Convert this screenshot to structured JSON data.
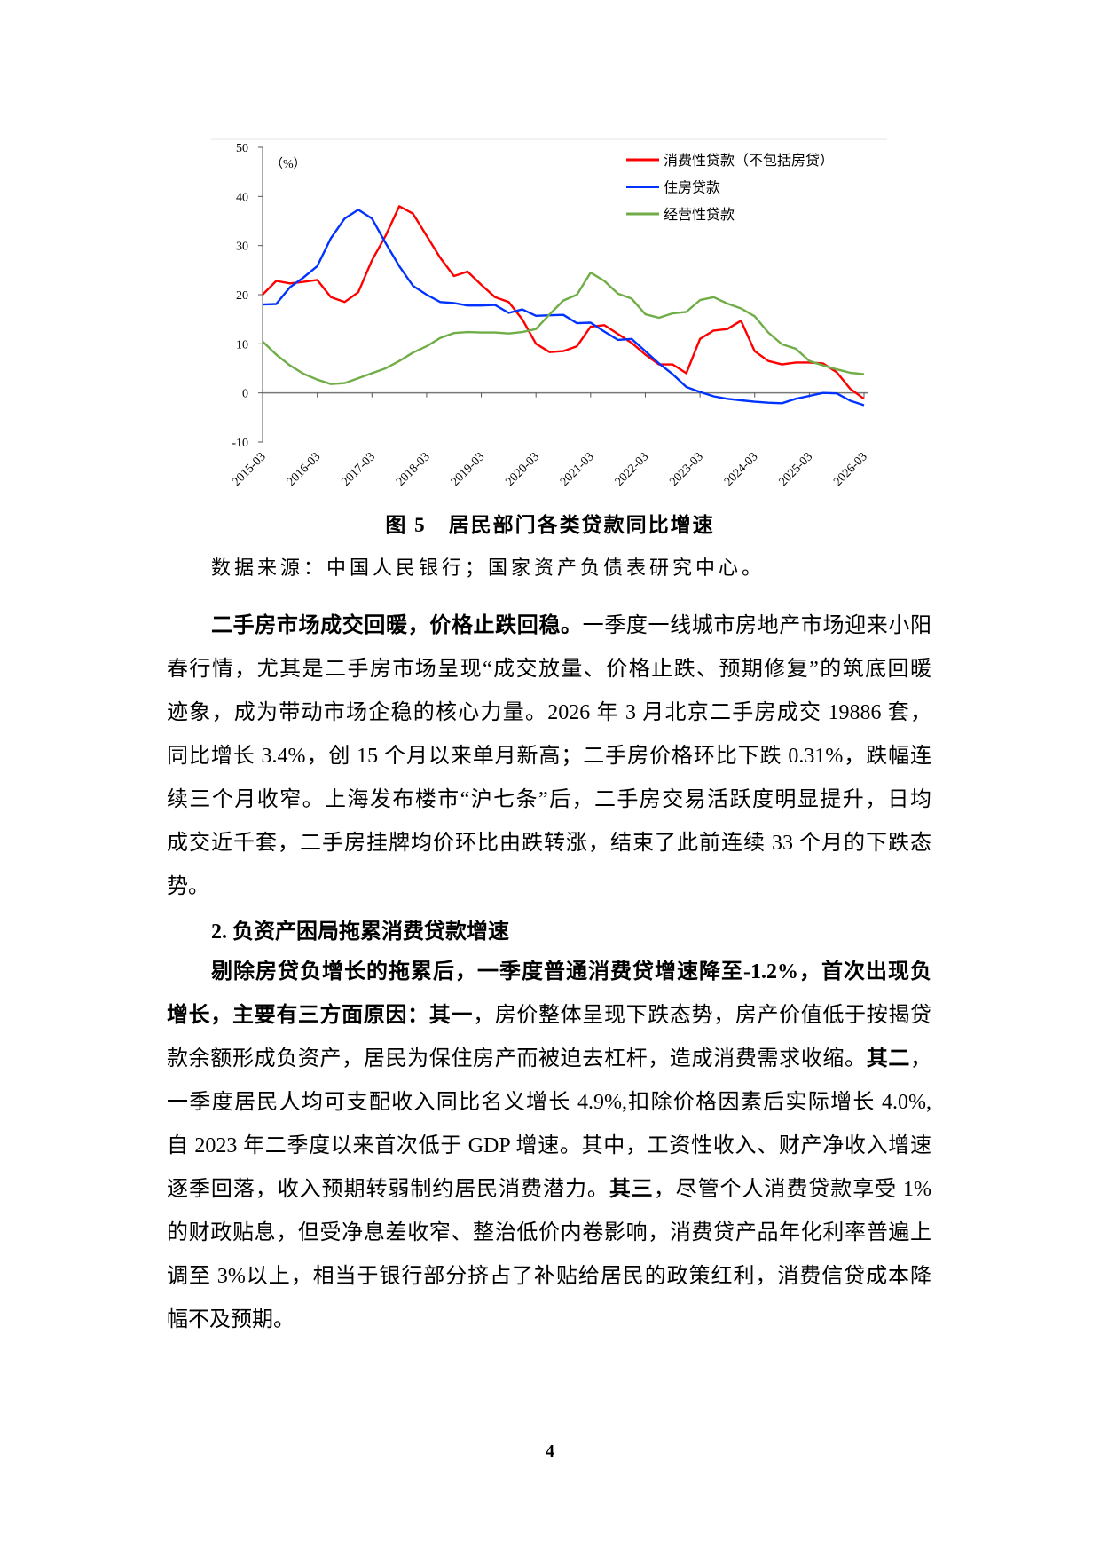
{
  "chart_data": {
    "type": "line",
    "ylabel_unit": "（%）",
    "ylim": [
      -10,
      50
    ],
    "yticks": [
      -10,
      0,
      10,
      20,
      30,
      40,
      50
    ],
    "x_tick_labels": [
      "2015-03",
      "2016-03",
      "2017-03",
      "2018-03",
      "2019-03",
      "2020-03",
      "2021-03",
      "2022-03",
      "2023-03",
      "2024-03",
      "2025-03",
      "2026-03"
    ],
    "x_frequency": "quarterly",
    "x_start": "2015-03",
    "x_end": "2026-03",
    "legend_position": "top-right",
    "grid": false,
    "series": [
      {
        "name": "消费性贷款（不包括房贷）",
        "color": "#ff0000",
        "values": [
          20,
          22.8,
          22.3,
          22.6,
          23,
          19.5,
          18.5,
          20.5,
          27,
          32,
          38,
          36.5,
          32,
          27.5,
          23.8,
          24.7,
          22,
          19.5,
          18.5,
          15,
          10,
          8.3,
          8.5,
          9.5,
          13.5,
          13.8,
          12,
          10.2,
          7.8,
          5.8,
          5.8,
          4,
          11,
          12.7,
          13,
          14.7,
          8.5,
          6.5,
          5.8,
          6.2,
          6.2,
          6,
          4.2,
          0.8,
          -1.2
        ]
      },
      {
        "name": "住房贷款",
        "color": "#0033ff",
        "values": [
          18,
          18.1,
          21.5,
          23.5,
          25.8,
          31.5,
          35.5,
          37.3,
          35.5,
          30.5,
          25.8,
          21.8,
          20,
          18.5,
          18.3,
          17.8,
          17.8,
          17.9,
          16.3,
          17,
          15.7,
          15.8,
          15.9,
          14.2,
          14.3,
          12.5,
          10.8,
          11,
          8.5,
          6,
          3.8,
          1.2,
          0.2,
          -0.7,
          -1.2,
          -1.5,
          -1.8,
          -2,
          -2.1,
          -1.2,
          -0.6,
          0,
          -0.1,
          -1.6,
          -2.5
        ]
      },
      {
        "name": "经营性贷款",
        "color": "#70ad47",
        "values": [
          10.5,
          7.8,
          5.6,
          3.9,
          2.7,
          1.8,
          2,
          3,
          4,
          5,
          6.5,
          8.2,
          9.5,
          11.2,
          12.2,
          12.4,
          12.3,
          12.3,
          12.1,
          12.4,
          13,
          16,
          18.8,
          20,
          24.5,
          22.8,
          20.2,
          19.2,
          16,
          15.3,
          16.2,
          16.5,
          18.9,
          19.5,
          18.2,
          17.2,
          15.6,
          12.3,
          9.9,
          9,
          6.5,
          5.6,
          4.8,
          4.1,
          3.8
        ]
      }
    ]
  },
  "figure": {
    "caption": "图 5　居民部门各类贷款同比增速",
    "source": "数据来源：中国人民银行；国家资产负债表研究中心。"
  },
  "paragraph1": [
    [
      {
        "t": "二手房市场成交回暖，价格止跌回稳。",
        "b": true
      },
      {
        "t": "一季度一线城市房地产市场迎来小阳",
        "b": false
      }
    ],
    [
      {
        "t": "春行情，尤其是二手房市场呈现“成交放量、价格止跌、预期修复”的筑底回暖",
        "b": false
      }
    ],
    [
      {
        "t": "迹象，成为带动市场企稳的核心力量。2026 年 3 月北京二手房成交 19886 套，",
        "b": false
      }
    ],
    [
      {
        "t": "同比增长 3.4%，创 15 个月以来单月新高；二手房价格环比下跌 0.31%，跌幅连",
        "b": false
      }
    ],
    [
      {
        "t": "续三个月收窄。上海发布楼市“沪七条”后，二手房交易活跃度明显提升，日均",
        "b": false
      }
    ],
    [
      {
        "t": "成交近千套，二手房挂牌均价环比由跌转涨，结束了此前连续 33 个月的下跌态",
        "b": false
      }
    ],
    [
      {
        "t": "势。",
        "b": false
      }
    ]
  ],
  "section_heading": "2. 负资产困局拖累消费贷款增速",
  "paragraph2": [
    [
      {
        "t": "剔除房贷负增长的拖累后，一季度普通消费贷增速降至-1.2%，首次出现负",
        "b": true
      }
    ],
    [
      {
        "t": "增长，主要有三方面原因：其一",
        "b": true
      },
      {
        "t": "，房价整体呈现下跌态势，房产价值低于按揭贷",
        "b": false
      }
    ],
    [
      {
        "t": "款余额形成负资产，居民为保住房产而被迫去杠杆，造成消费需求收缩。",
        "b": false
      },
      {
        "t": "其二",
        "b": true
      },
      {
        "t": "，",
        "b": false
      }
    ],
    [
      {
        "t": "一季度居民人均可支配收入同比名义增长 4.9%,扣除价格因素后实际增长 4.0%,",
        "b": false
      }
    ],
    [
      {
        "t": "自 2023 年二季度以来首次低于 GDP 增速。其中，工资性收入、财产净收入增速",
        "b": false
      }
    ],
    [
      {
        "t": "逐季回落，收入预期转弱制约居民消费潜力。",
        "b": false
      },
      {
        "t": "其三",
        "b": true
      },
      {
        "t": "，尽管个人消费贷款享受 1%",
        "b": false
      }
    ],
    [
      {
        "t": "的财政贴息，但受净息差收窄、整治低价内卷影响，消费贷产品年化利率普遍上",
        "b": false
      }
    ],
    [
      {
        "t": "调至 3%以上，相当于银行部分挤占了补贴给居民的政策红利，消费信贷成本降",
        "b": false
      }
    ],
    [
      {
        "t": "幅不及预期。",
        "b": false
      }
    ]
  ],
  "page_number": "4"
}
